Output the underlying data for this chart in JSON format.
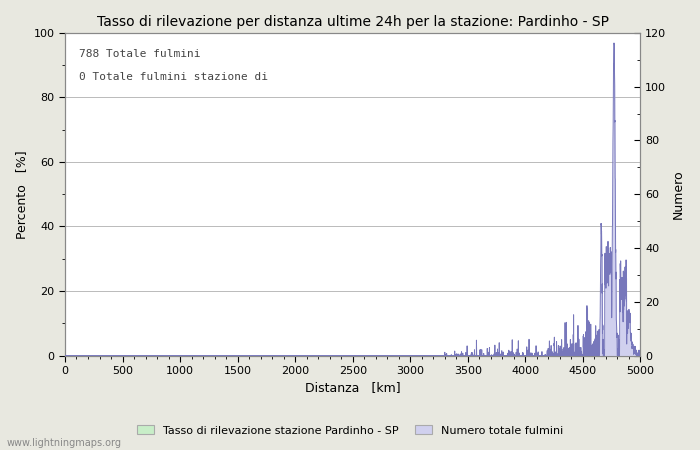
{
  "title": "Tasso di rilevazione per distanza ultime 24h per la stazione: Pardinho - SP",
  "xlabel": "Distanza   [km]",
  "ylabel_left": "Percento   [%]",
  "ylabel_right": "Numero",
  "annotation_line1": "788 Totale fulmini",
  "annotation_line2": "0 Totale fulmini stazione di",
  "legend_label1": "Tasso di rilevazione stazione Pardinho - SP",
  "legend_label2": "Numero totale fulmini",
  "watermark": "www.lightningmaps.org",
  "xlim": [
    0,
    5000
  ],
  "ylim_left": [
    0,
    100
  ],
  "ylim_right": [
    0,
    120
  ],
  "x_ticks": [
    0,
    500,
    1000,
    1500,
    2000,
    2500,
    3000,
    3500,
    4000,
    4500,
    5000
  ],
  "y_ticks_left": [
    0,
    20,
    40,
    60,
    80,
    100
  ],
  "y_ticks_right": [
    0,
    20,
    40,
    60,
    80,
    100,
    120
  ],
  "bg_color": "#e8e8e0",
  "plot_bg_color": "#ffffff",
  "line_color": "#7777bb",
  "fill_color": "#d0d0ee",
  "grid_color": "#b0b0b0",
  "title_fontsize": 10,
  "axis_fontsize": 9,
  "tick_fontsize": 8,
  "legend_fill_color1": "#c8eec8",
  "legend_fill_color2": "#d0d0ee",
  "legend_edge_color": "#aaaaaa"
}
